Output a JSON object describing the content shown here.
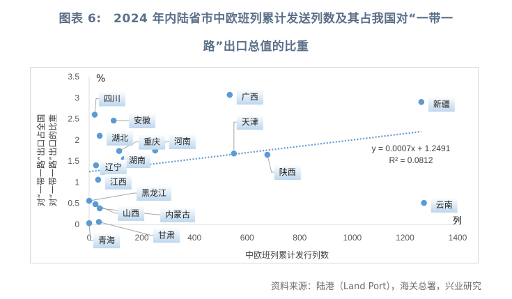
{
  "title": {
    "line1": "图表 6:　2024 年内陆省市中欧班列累计发送列数及其占我国对“一带一",
    "line2": "路”出口总值的比重"
  },
  "source": "资料来源：陆港（Land Port），海关总署，兴业研究",
  "chart_data": {
    "type": "scatter",
    "title": "2024 年内陆省市中欧班列累计发送列数及其占我国对“一带一路”出口总值的比重",
    "xlabel": "中欧班列累计发行列数",
    "xunit": "列",
    "ylabel": "对“一带一路”出口占全国对“一带一路”出口的比重",
    "yunit": "%",
    "xlim": [
      0,
      1400
    ],
    "ylim": [
      0,
      3.5
    ],
    "xticks": [
      "0",
      "200",
      "400",
      "600",
      "800",
      "1000",
      "1200",
      "1400"
    ],
    "yticks": [
      "0",
      "0.5",
      "1",
      "1.5",
      "2",
      "2.5",
      "3",
      "3.5"
    ],
    "grid": false,
    "legend": "none",
    "points": [
      {
        "label": "四川",
        "x": 21,
        "y": 2.6
      },
      {
        "label": "安徽",
        "x": 93,
        "y": 2.46
      },
      {
        "label": "湖北",
        "x": 40,
        "y": 2.1
      },
      {
        "label": "重庆",
        "x": 114,
        "y": 1.74
      },
      {
        "label": "河南",
        "x": 251,
        "y": 1.75
      },
      {
        "label": "湖南",
        "x": 132,
        "y": 1.55
      },
      {
        "label": "辽宁",
        "x": 26,
        "y": 1.4
      },
      {
        "label": "江西",
        "x": 34,
        "y": 1.06
      },
      {
        "label": "广西",
        "x": 534,
        "y": 3.07
      },
      {
        "label": "新疆",
        "x": 1262,
        "y": 2.9
      },
      {
        "label": "天津",
        "x": 550,
        "y": 1.68
      },
      {
        "label": "陕西",
        "x": 677,
        "y": 1.65
      },
      {
        "label": "云南",
        "x": 1272,
        "y": 0.51
      },
      {
        "label": "黑龙江",
        "x": 0,
        "y": 0.56
      },
      {
        "label": "山西",
        "x": 24,
        "y": 0.48
      },
      {
        "label": "内蒙古",
        "x": 40,
        "y": 0.38
      },
      {
        "label": "青海",
        "x": 0,
        "y": 0.03
      },
      {
        "label": "甘肃",
        "x": 37,
        "y": 0.06
      }
    ],
    "trendline": {
      "type": "linear",
      "slope": 0.0007,
      "intercept": 1.2491,
      "equation": "y = 0.0007x + 1.2491",
      "r2": "R² = 0.0812",
      "x_range": [
        0,
        1262
      ]
    },
    "colors": {
      "point": "#5b9bd5",
      "trend": "#5b9bd5",
      "label_box_top": "#ffffff",
      "label_box_bottom": "#bdd7ee"
    }
  }
}
